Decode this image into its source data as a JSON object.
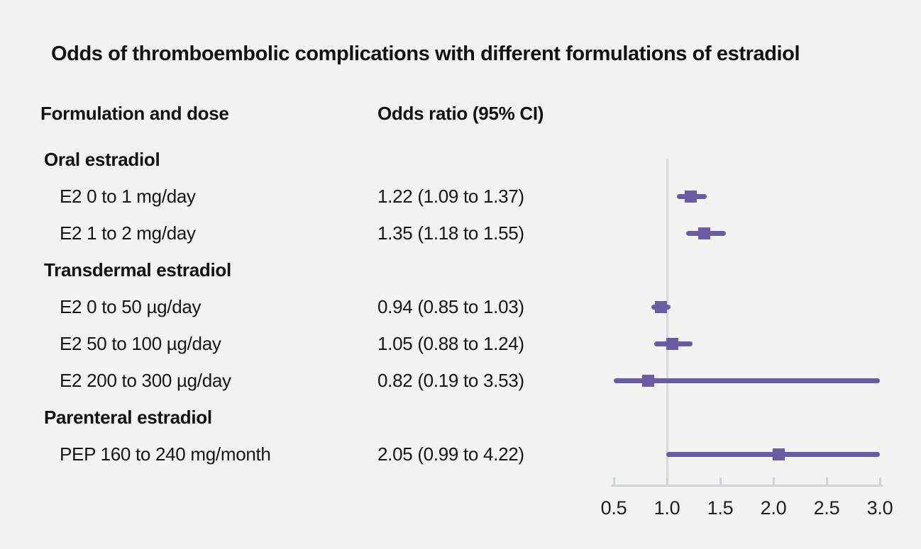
{
  "page": {
    "background": "#f2f2f1",
    "text_color": "#151515",
    "accent_purple": "#6a5ba3",
    "axis_color": "#ccd3dc",
    "reference_line_color": "#d6dae0"
  },
  "title": "Odds of thromboembolic complications with different formulations of estradiol",
  "columns": {
    "formulation": "Formulation and dose",
    "odds_ratio": "Odds ratio (95% CI)"
  },
  "chart_data": {
    "type": "scatter",
    "variant": "forest-plot",
    "title": "Odds of thromboembolic complications with different formulations of estradiol",
    "xlabel": "Odds ratio",
    "xlim": [
      0.5,
      3.0
    ],
    "reference_value": 1.0,
    "grid": false,
    "x_ticks": [
      {
        "value": 0.5,
        "label": "0.5"
      },
      {
        "value": 1.0,
        "label": "1.0"
      },
      {
        "value": 1.5,
        "label": "1.5"
      },
      {
        "value": 2.0,
        "label": "2.0"
      },
      {
        "value": 2.5,
        "label": "2.5"
      },
      {
        "value": 3.0,
        "label": "3.0"
      }
    ],
    "groups": [
      {
        "label": "Oral estradiol",
        "items": [
          {
            "label": "E2 0 to 1 mg/day",
            "or": 1.22,
            "ci_low": 1.09,
            "ci_high": 1.37,
            "display": "1.22 (1.09 to 1.37)"
          },
          {
            "label": "E2 1 to 2 mg/day",
            "or": 1.35,
            "ci_low": 1.18,
            "ci_high": 1.55,
            "display": "1.35 (1.18 to 1.55)"
          }
        ]
      },
      {
        "label": "Transdermal estradiol",
        "items": [
          {
            "label": "E2 0 to 50 µg/day",
            "or": 0.94,
            "ci_low": 0.85,
            "ci_high": 1.03,
            "display": "0.94 (0.85 to 1.03)"
          },
          {
            "label": "E2 50 to 100 µg/day",
            "or": 1.05,
            "ci_low": 0.88,
            "ci_high": 1.24,
            "display": "1.05 (0.88 to 1.24)"
          },
          {
            "label": "E2 200 to 300 µg/day",
            "or": 0.82,
            "ci_low": 0.19,
            "ci_high": 3.53,
            "display": "0.82 (0.19 to 3.53)"
          }
        ]
      },
      {
        "label": "Parenteral estradiol",
        "items": [
          {
            "label": "PEP 160 to 240 mg/month",
            "or": 2.05,
            "ci_low": 0.99,
            "ci_high": 4.22,
            "display": "2.05 (0.99 to 4.22)"
          }
        ]
      }
    ]
  }
}
